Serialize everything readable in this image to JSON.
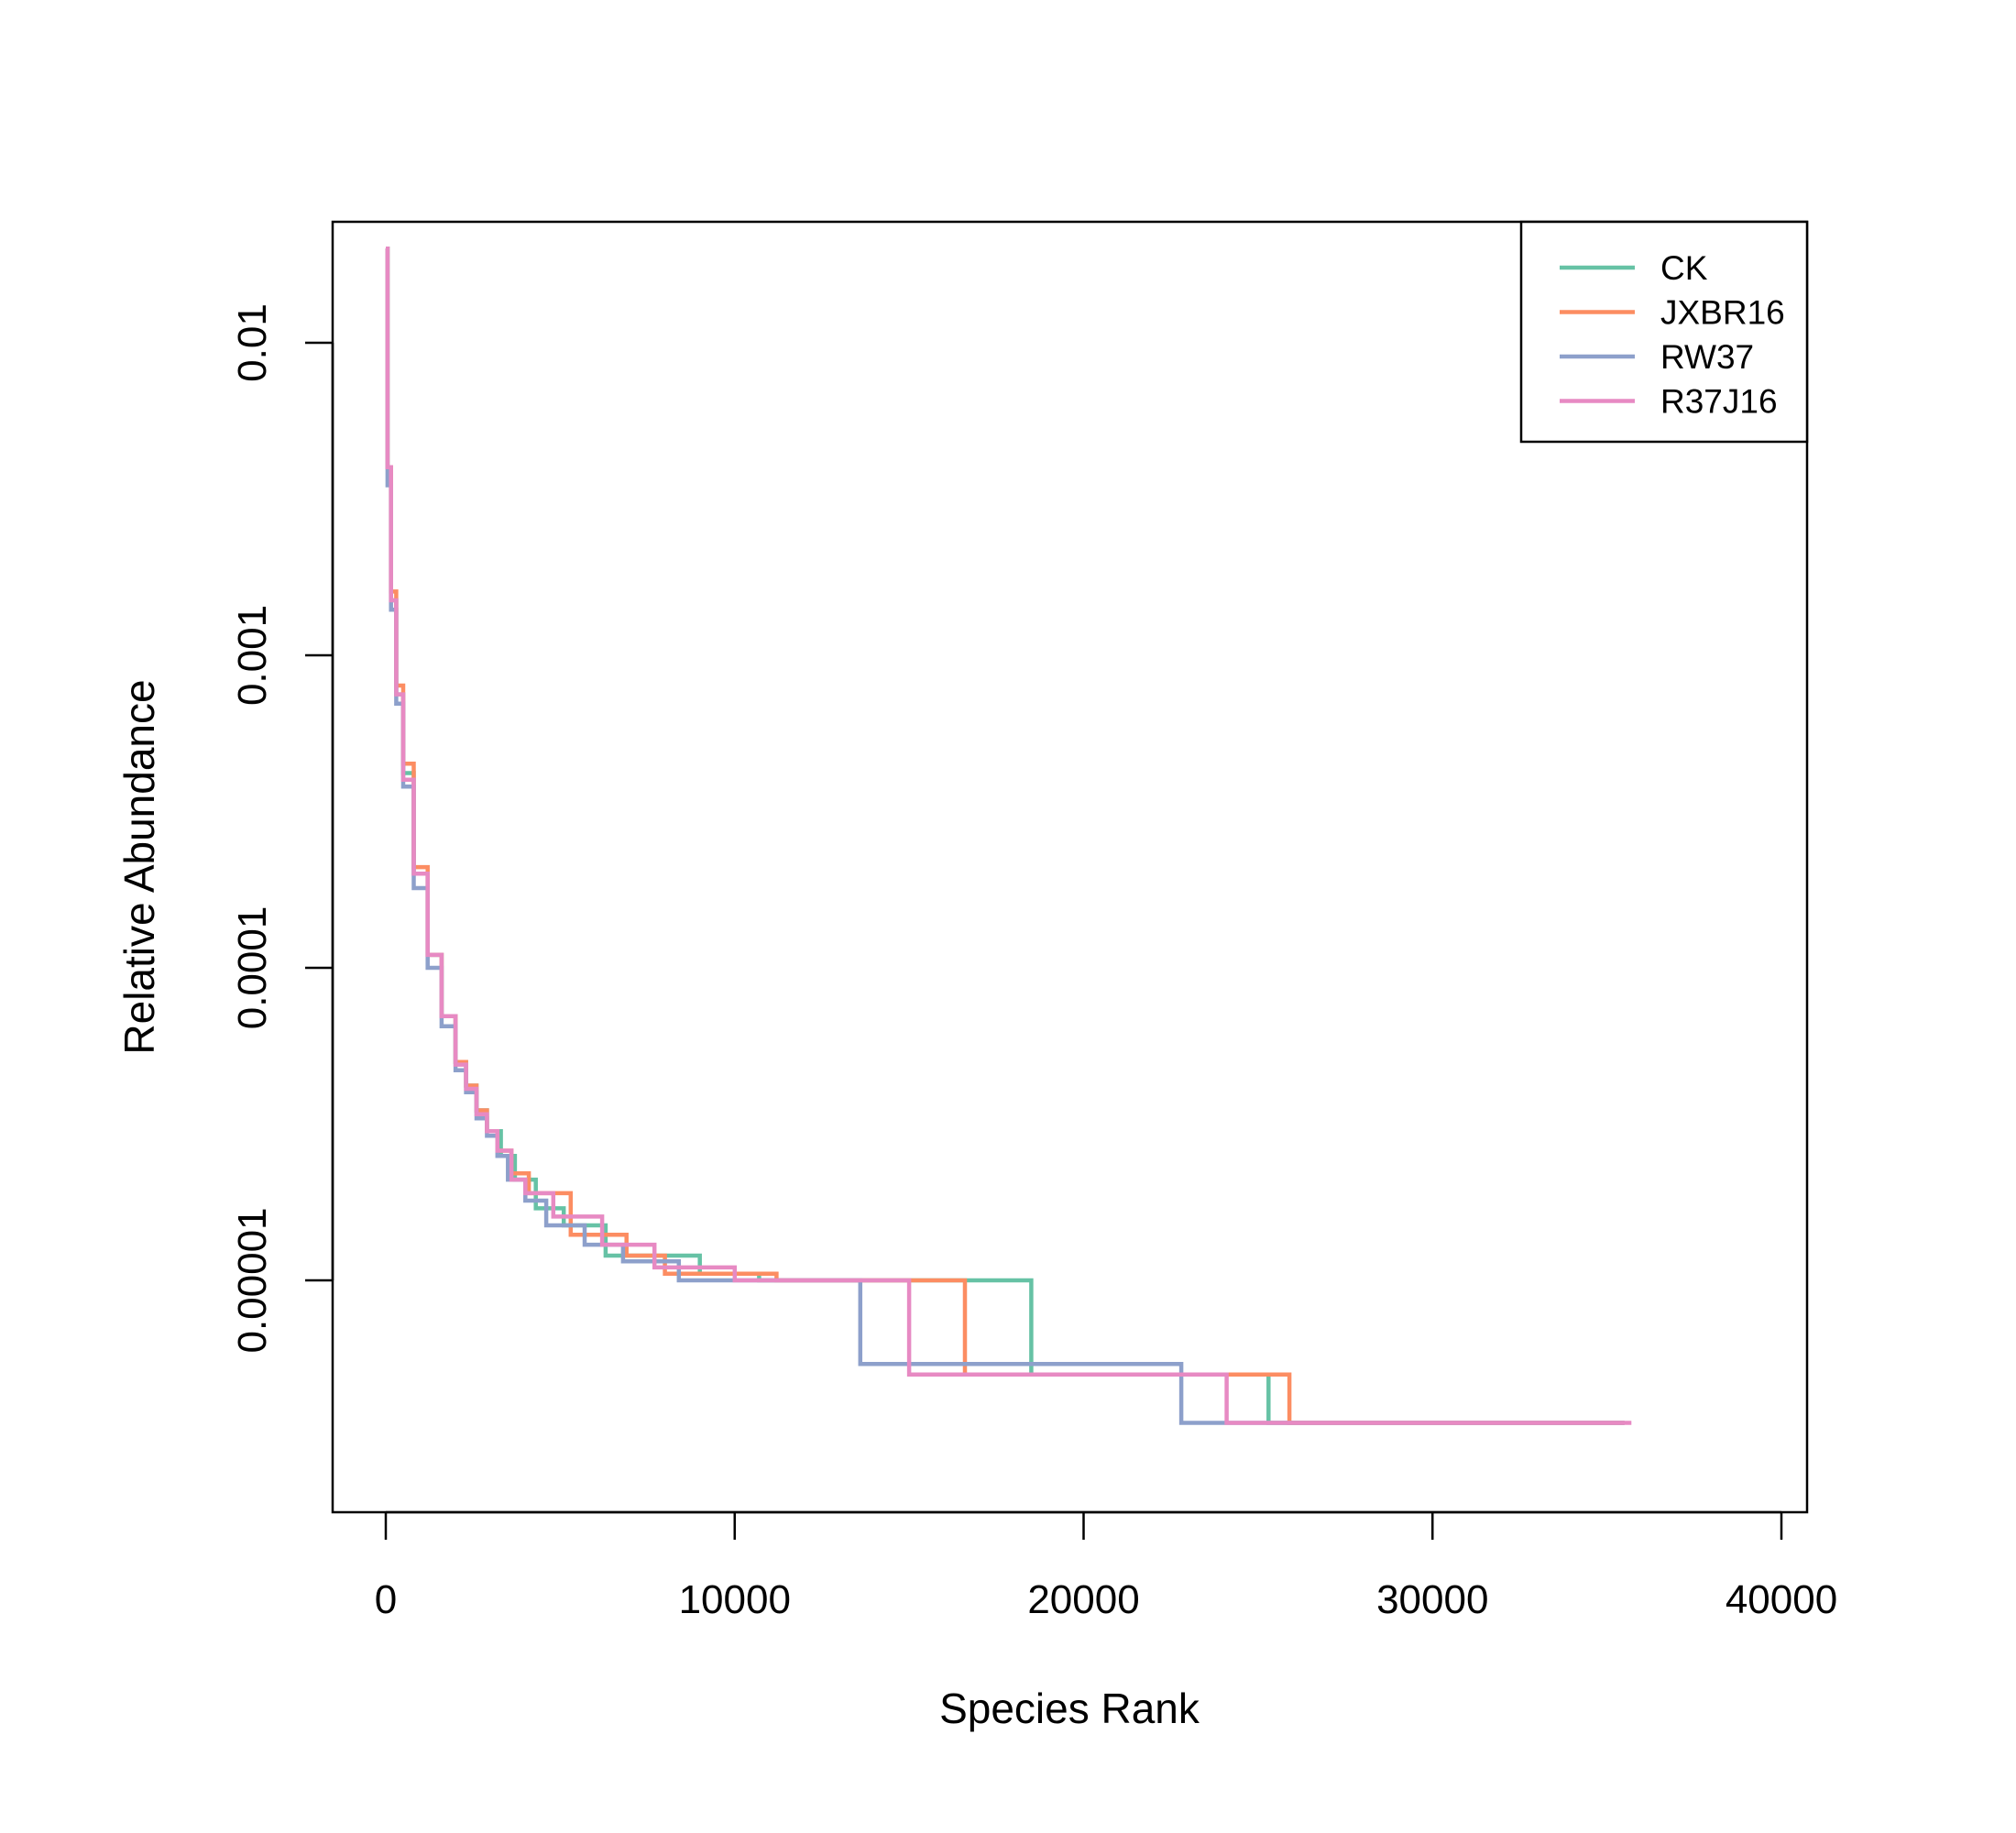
{
  "chart_data": {
    "type": "line",
    "title": "",
    "xlabel": "Species Rank",
    "ylabel": "Relative Abundance",
    "x_scale": "linear",
    "y_scale": "log",
    "xlim": [
      0,
      40000
    ],
    "ylim_log10": [
      -5.74,
      -2.39
    ],
    "x_ticks": [
      {
        "value": 0,
        "label": "0"
      },
      {
        "value": 10000,
        "label": "10000"
      },
      {
        "value": 20000,
        "label": "20000"
      },
      {
        "value": 30000,
        "label": "30000"
      },
      {
        "value": 40000,
        "label": "40000"
      }
    ],
    "y_ticks": [
      {
        "value": 0.01,
        "label": "0.01"
      },
      {
        "value": 0.001,
        "label": "0.001"
      },
      {
        "value": 0.0001,
        "label": "0.0001"
      },
      {
        "value": 1e-05,
        "label": "0.00001"
      }
    ],
    "grid": false,
    "legend_position": "top-right",
    "series": [
      {
        "name": "CK",
        "color": "#66c2a5",
        "points": [
          [
            0,
            0.02
          ],
          [
            50,
            0.004
          ],
          [
            150,
            0.0015
          ],
          [
            300,
            0.00075
          ],
          [
            500,
            0.00042
          ],
          [
            800,
            0.0002
          ],
          [
            1200,
            0.00011
          ],
          [
            1600,
            7e-05
          ],
          [
            2000,
            5e-05
          ],
          [
            2300,
            4.2e-05
          ],
          [
            2600,
            3.5e-05
          ],
          [
            2900,
            3e-05
          ],
          [
            3300,
            2.5e-05
          ],
          [
            3700,
            2.1e-05
          ],
          [
            4300,
            1.7e-05
          ],
          [
            5100,
            1.5e-05
          ],
          [
            6300,
            1.2e-05
          ],
          [
            9000,
            1.05e-05
          ],
          [
            10700,
            1e-05
          ],
          [
            18500,
            5e-06
          ],
          [
            25300,
            3.5e-06
          ],
          [
            35500,
            3.5e-06
          ]
        ]
      },
      {
        "name": "JXBR16",
        "color": "#fc8d62",
        "points": [
          [
            0,
            0.02
          ],
          [
            50,
            0.004
          ],
          [
            150,
            0.0016
          ],
          [
            300,
            0.0008
          ],
          [
            500,
            0.00045
          ],
          [
            800,
            0.00021
          ],
          [
            1200,
            0.00011
          ],
          [
            1600,
            7e-05
          ],
          [
            2000,
            5e-05
          ],
          [
            2300,
            4.2e-05
          ],
          [
            2600,
            3.5e-05
          ],
          [
            2900,
            3e-05
          ],
          [
            3200,
            2.6e-05
          ],
          [
            3600,
            2.2e-05
          ],
          [
            4100,
            1.9e-05
          ],
          [
            5300,
            1.4e-05
          ],
          [
            6900,
            1.2e-05
          ],
          [
            8000,
            1.05e-05
          ],
          [
            11200,
            1e-05
          ],
          [
            16600,
            5e-06
          ],
          [
            25900,
            3.5e-06
          ],
          [
            35500,
            3.5e-06
          ]
        ]
      },
      {
        "name": "RW37",
        "color": "#8da0cb",
        "points": [
          [
            0,
            0.02
          ],
          [
            50,
            0.0035
          ],
          [
            150,
            0.0014
          ],
          [
            300,
            0.0007
          ],
          [
            500,
            0.00038
          ],
          [
            800,
            0.00018
          ],
          [
            1200,
            0.0001
          ],
          [
            1600,
            6.5e-05
          ],
          [
            2000,
            4.7e-05
          ],
          [
            2300,
            4e-05
          ],
          [
            2600,
            3.3e-05
          ],
          [
            2900,
            2.9e-05
          ],
          [
            3200,
            2.5e-05
          ],
          [
            3500,
            2.1e-05
          ],
          [
            4000,
            1.8e-05
          ],
          [
            4600,
            1.5e-05
          ],
          [
            5700,
            1.3e-05
          ],
          [
            6800,
            1.15e-05
          ],
          [
            8400,
            1e-05
          ],
          [
            13600,
            5.4e-06
          ],
          [
            22800,
            3.5e-06
          ],
          [
            35500,
            3.5e-06
          ]
        ]
      },
      {
        "name": "R37J16",
        "color": "#e78ac3",
        "points": [
          [
            0,
            0.02
          ],
          [
            50,
            0.004
          ],
          [
            150,
            0.0015
          ],
          [
            300,
            0.00075
          ],
          [
            500,
            0.0004
          ],
          [
            800,
            0.0002
          ],
          [
            1200,
            0.00011
          ],
          [
            1600,
            7e-05
          ],
          [
            2000,
            4.9e-05
          ],
          [
            2300,
            4.1e-05
          ],
          [
            2600,
            3.4e-05
          ],
          [
            2900,
            3e-05
          ],
          [
            3200,
            2.6e-05
          ],
          [
            3600,
            2.1e-05
          ],
          [
            4000,
            1.9e-05
          ],
          [
            4800,
            1.6e-05
          ],
          [
            6200,
            1.3e-05
          ],
          [
            7700,
            1.1e-05
          ],
          [
            10000,
            1e-05
          ],
          [
            15000,
            5e-06
          ],
          [
            24100,
            3.5e-06
          ],
          [
            35700,
            3.5e-06
          ]
        ]
      }
    ]
  }
}
